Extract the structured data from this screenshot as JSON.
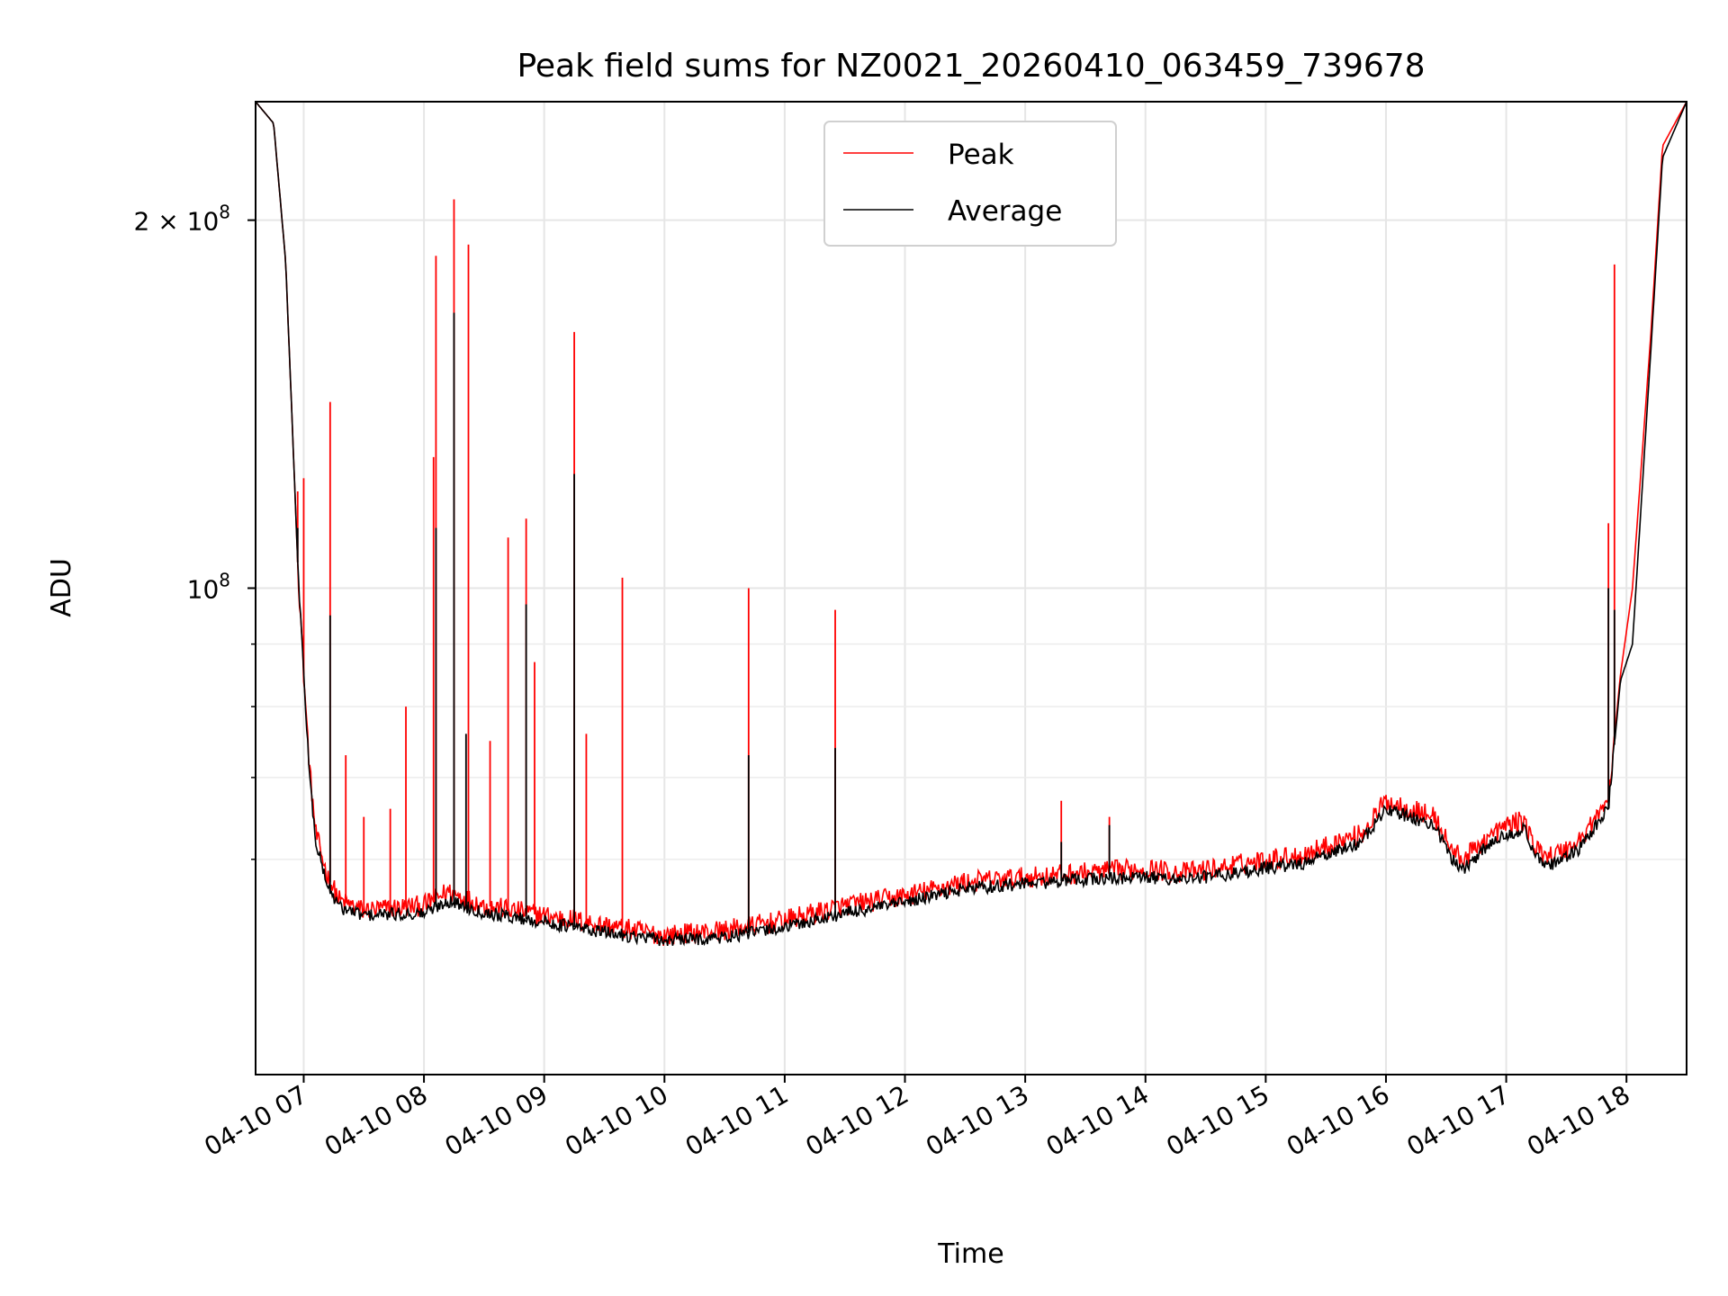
{
  "chart_data": {
    "type": "line",
    "title": "Peak field sums for NZ0021_20260410_063459_739678",
    "xlabel": "Time",
    "ylabel": "ADU",
    "y_scale": "log",
    "grid": true,
    "legend_position": "top-center",
    "x_range_hours": [
      6.6,
      18.5
    ],
    "y_range": [
      40000000,
      250000000
    ],
    "x_ticks": [
      {
        "hour": 7,
        "label": "04-10 07"
      },
      {
        "hour": 8,
        "label": "04-10 08"
      },
      {
        "hour": 9,
        "label": "04-10 09"
      },
      {
        "hour": 10,
        "label": "04-10 10"
      },
      {
        "hour": 11,
        "label": "04-10 11"
      },
      {
        "hour": 12,
        "label": "04-10 12"
      },
      {
        "hour": 13,
        "label": "04-10 13"
      },
      {
        "hour": 14,
        "label": "04-10 14"
      },
      {
        "hour": 15,
        "label": "04-10 15"
      },
      {
        "hour": 16,
        "label": "04-10 16"
      },
      {
        "hour": 17,
        "label": "04-10 17"
      },
      {
        "hour": 18,
        "label": "04-10 18"
      }
    ],
    "y_ticks_major": [
      {
        "value": 200000000,
        "label_base": "2 × 10",
        "label_exp": "8"
      },
      {
        "value": 100000000,
        "label_base": "10",
        "label_exp": "8"
      }
    ],
    "y_ticks_minor": [
      60000000,
      70000000,
      80000000,
      90000000
    ],
    "series": [
      {
        "name": "Peak",
        "color": "#ff0000",
        "x": [
          6.6,
          6.75,
          6.85,
          6.9,
          6.95,
          7.0,
          7.05,
          7.1,
          7.2,
          7.3,
          7.5,
          8.0,
          8.2,
          8.5,
          9.0,
          9.5,
          10.0,
          10.5,
          11.0,
          11.5,
          12.0,
          12.5,
          13.0,
          13.5,
          14.0,
          14.3,
          14.6,
          15.0,
          15.3,
          15.6,
          15.8,
          16.0,
          16.2,
          16.4,
          16.55,
          16.65,
          16.8,
          17.0,
          17.15,
          17.25,
          17.4,
          17.6,
          17.75,
          17.85,
          17.95,
          18.05,
          18.2,
          18.3,
          18.5
        ],
        "y": [
          250000000,
          240000000,
          185000000,
          140000000,
          105000000,
          85000000,
          71000000,
          63000000,
          58000000,
          55500000,
          54500000,
          55000000,
          56500000,
          55000000,
          54000000,
          53000000,
          52000000,
          52500000,
          53500000,
          55000000,
          56000000,
          57500000,
          58000000,
          58500000,
          59000000,
          58500000,
          59000000,
          60000000,
          60500000,
          62000000,
          63000000,
          67000000,
          66000000,
          65000000,
          61000000,
          60000000,
          62000000,
          64000000,
          64500000,
          61000000,
          60500000,
          62000000,
          65000000,
          67000000,
          85000000,
          100000000,
          160000000,
          230000000,
          250000000
        ],
        "spikes": [
          [
            6.95,
            120000000
          ],
          [
            7.0,
            123000000
          ],
          [
            7.22,
            142000000
          ],
          [
            7.35,
            73000000
          ],
          [
            7.5,
            65000000
          ],
          [
            7.72,
            66000000
          ],
          [
            7.85,
            80000000
          ],
          [
            8.08,
            128000000
          ],
          [
            8.1,
            187000000
          ],
          [
            8.25,
            208000000
          ],
          [
            8.37,
            191000000
          ],
          [
            8.55,
            75000000
          ],
          [
            8.7,
            110000000
          ],
          [
            8.85,
            114000000
          ],
          [
            8.92,
            87000000
          ],
          [
            9.25,
            162000000
          ],
          [
            9.35,
            76000000
          ],
          [
            9.65,
            102000000
          ],
          [
            10.7,
            100000000
          ],
          [
            11.42,
            96000000
          ],
          [
            13.3,
            67000000
          ],
          [
            13.7,
            65000000
          ],
          [
            17.85,
            113000000
          ],
          [
            17.9,
            184000000
          ]
        ]
      },
      {
        "name": "Average",
        "color": "#000000",
        "x": [
          6.6,
          6.75,
          6.85,
          6.9,
          6.95,
          7.0,
          7.05,
          7.1,
          7.2,
          7.3,
          7.5,
          8.0,
          8.2,
          8.5,
          9.0,
          9.5,
          10.0,
          10.5,
          11.0,
          11.5,
          12.0,
          12.5,
          13.0,
          13.5,
          14.0,
          14.3,
          14.6,
          15.0,
          15.3,
          15.6,
          15.8,
          16.0,
          16.2,
          16.4,
          16.55,
          16.65,
          16.8,
          17.0,
          17.15,
          17.25,
          17.4,
          17.6,
          17.75,
          17.85,
          17.95,
          18.05,
          18.2,
          18.3,
          18.5
        ],
        "y": [
          250000000,
          240000000,
          185000000,
          140000000,
          105000000,
          85000000,
          70000000,
          62000000,
          57000000,
          54800000,
          54000000,
          54200000,
          55500000,
          54300000,
          53300000,
          52300000,
          51500000,
          51800000,
          52800000,
          54200000,
          55300000,
          56800000,
          57300000,
          57800000,
          58000000,
          57800000,
          58200000,
          59000000,
          59500000,
          61000000,
          62000000,
          66000000,
          65000000,
          64000000,
          60000000,
          59000000,
          61000000,
          63000000,
          63500000,
          60000000,
          59500000,
          61000000,
          64000000,
          66000000,
          84000000,
          90000000,
          155000000,
          225000000,
          250000000
        ],
        "spikes": [
          [
            6.95,
            112000000
          ],
          [
            7.22,
            95000000
          ],
          [
            8.1,
            112000000
          ],
          [
            8.25,
            168000000
          ],
          [
            8.35,
            76000000
          ],
          [
            8.85,
            97000000
          ],
          [
            9.25,
            124000000
          ],
          [
            10.7,
            73000000
          ],
          [
            11.42,
            74000000
          ],
          [
            13.3,
            62000000
          ],
          [
            13.7,
            64000000
          ],
          [
            17.85,
            100000000
          ],
          [
            17.9,
            96000000
          ]
        ]
      }
    ]
  }
}
